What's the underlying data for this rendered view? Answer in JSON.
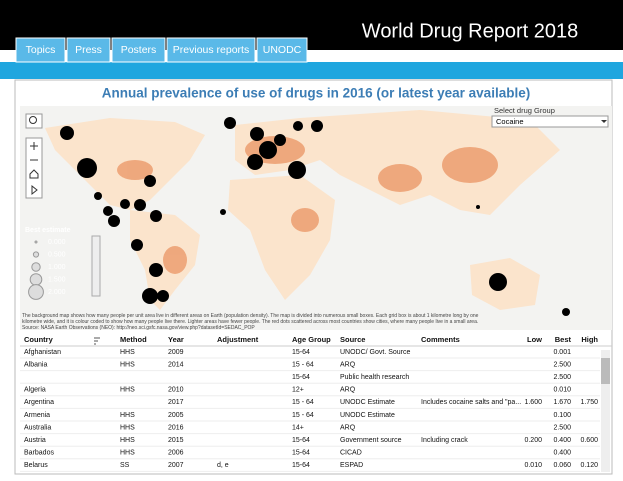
{
  "header": {
    "title": "World Drug Report 2018"
  },
  "tabs": [
    "Topics",
    "Press",
    "Posters",
    "Previous reports",
    "UNODC"
  ],
  "map": {
    "title": "Annual prevalence of use of drugs in 2016 (or latest year available)",
    "drug_select": {
      "label": "Select drug Group",
      "value": "Cocaine"
    },
    "legend": {
      "title": "Best estimate",
      "labels": [
        "0.000",
        "0.500",
        "1.000",
        "1.500",
        "2.000"
      ]
    },
    "caption": "The background map shows how many people per unit area live in different areas on Earth (population density). The map is divided into numerous small boxes. Each grid box is about 1 kilometre long by one kilometre wide, and it is colour coded to show how many people live there. Lighter areas have fewer people. The red dots scattered across most countries show cities, where many people live in a small area. Source: NASA Earth Observations (NEO): http://neo.sci.gsfc.nasa.gov/view.php?datasetId=SEDAC_POP"
  },
  "table": {
    "columns": [
      "Country",
      "Method",
      "Year",
      "Adjustment",
      "Age Group",
      "Source",
      "Comments",
      "Low",
      "Best",
      "High"
    ],
    "rows": [
      [
        "Afghanistan",
        "HHS",
        "2009",
        null,
        "15-64",
        "UNODC/ Govt. Source",
        null,
        null,
        "0.001",
        null
      ],
      [
        "Albania",
        "HHS",
        "2014",
        null,
        "15 - 64",
        "ARQ",
        null,
        null,
        "2.500",
        null
      ],
      [
        null,
        null,
        null,
        null,
        "15-64",
        "Public health research",
        null,
        null,
        "2.500",
        null
      ],
      [
        "Algeria",
        "HHS",
        "2010",
        null,
        "12+",
        "ARQ",
        null,
        null,
        "0.010",
        null
      ],
      [
        "Argentina",
        null,
        "2017",
        null,
        "15 - 64",
        "UNODC Estimate",
        "Includes cocaine salts and \"pa...",
        "1.600",
        "1.670",
        "1.750"
      ],
      [
        "Armenia",
        "HHS",
        "2005",
        null,
        "15 - 64",
        "UNODC Estimate",
        null,
        null,
        "0.100",
        null
      ],
      [
        "Australia",
        "HHS",
        "2016",
        null,
        "14+",
        "ARQ",
        null,
        null,
        "2.500",
        null
      ],
      [
        "Austria",
        "HHS",
        "2015",
        null,
        "15-64",
        "Government source",
        "Including crack",
        "0.200",
        "0.400",
        "0.600"
      ],
      [
        "Barbados",
        "HHS",
        "2006",
        null,
        "15-64",
        "CICAD",
        null,
        null,
        "0.400",
        null
      ],
      [
        "Belarus",
        "SS",
        "2007",
        "d, e",
        "15-64",
        "ESPAD",
        null,
        "0.010",
        "0.060",
        "0.120"
      ]
    ]
  }
}
